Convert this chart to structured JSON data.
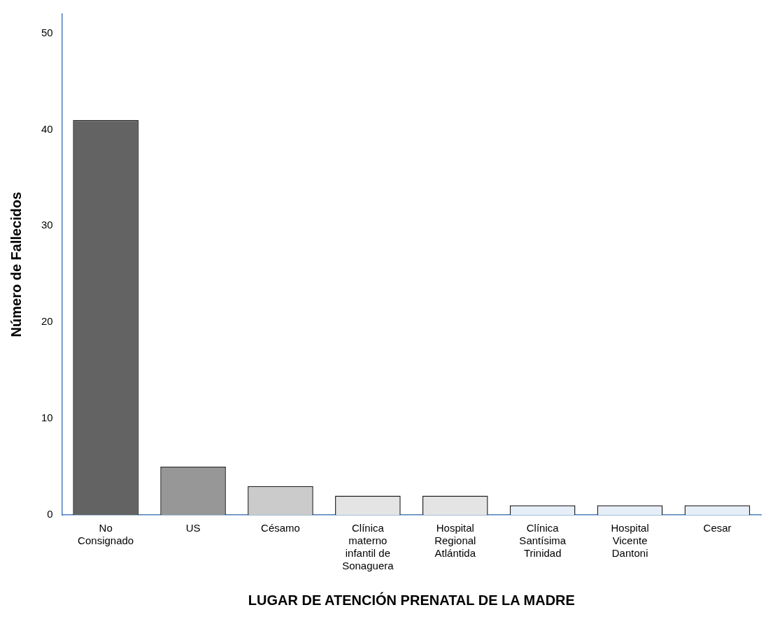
{
  "chart_data": {
    "type": "bar",
    "xlabel": "LUGAR DE ATENCIÓN PRENATAL DE LA MADRE",
    "ylabel": "Número de Fallecidos",
    "categories": [
      "No Consignado",
      "US",
      "Césamo",
      "Clínica materno infantil de Sonaguera",
      "Hospital Regional Atlántida",
      "Clínica Santísima Trinidad",
      "Hospital Vicente Dantoni",
      "Cesar"
    ],
    "values": [
      41,
      5,
      3,
      2,
      2,
      1,
      1,
      1
    ],
    "colors": [
      "#636363",
      "#979797",
      "#cbcbcb",
      "#e4e4e4",
      "#e4e4e4",
      "#e6eef8",
      "#e6eef8",
      "#e6eef8"
    ],
    "ylim": [
      0,
      52
    ],
    "yticks": [
      0,
      10,
      20,
      30,
      40,
      50
    ],
    "grid": false,
    "legend": false
  }
}
